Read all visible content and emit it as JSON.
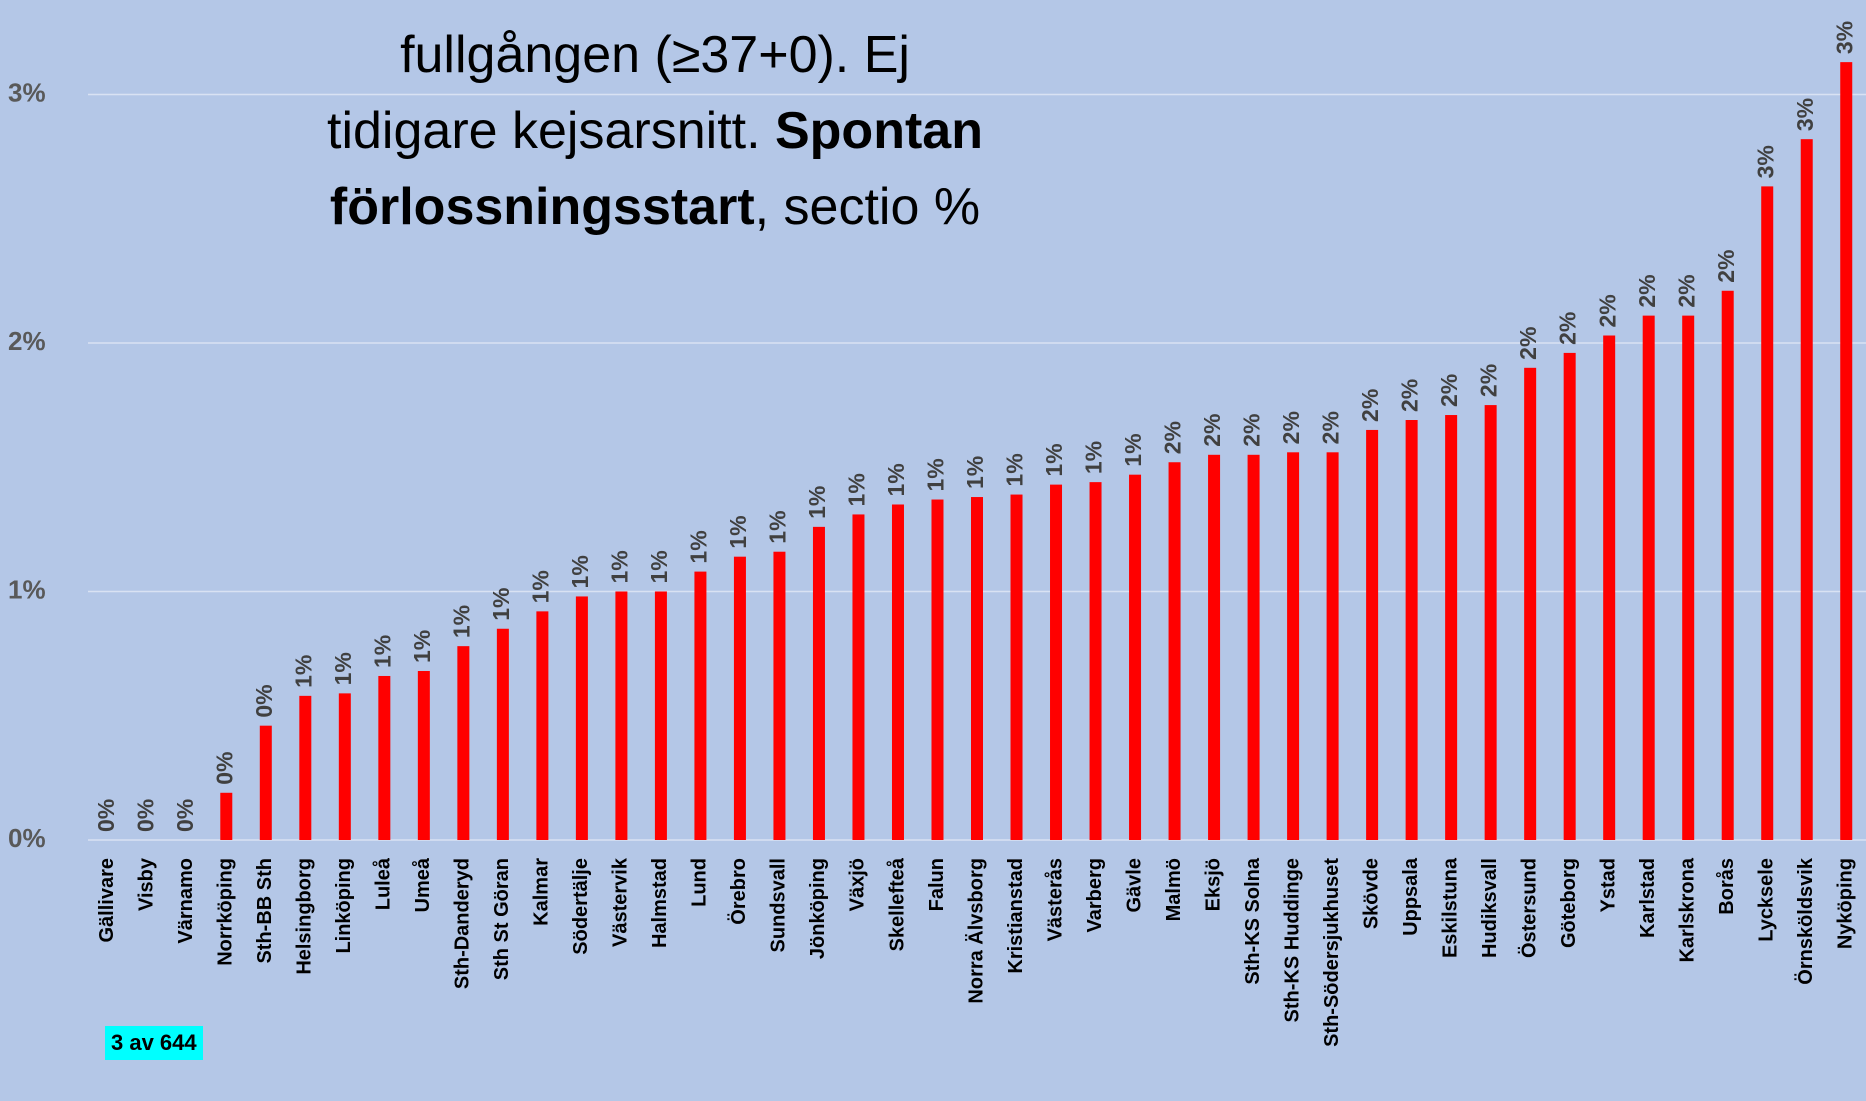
{
  "chart_data": {
    "type": "bar",
    "title_lines": [
      [
        {
          "text": "fullgången (≥37+0). Ej",
          "bold": false
        }
      ],
      [
        {
          "text": "tidigare kejsarsnitt. ",
          "bold": false
        },
        {
          "text": "Spontan",
          "bold": true
        }
      ],
      [
        {
          "text": "förlossningsstart",
          "bold": true
        },
        {
          "text": ", sectio %",
          "bold": false
        }
      ]
    ],
    "badge": "3 av 644",
    "categories": [
      "Gällivare",
      "Visby",
      "Värnamo",
      "Norrköping",
      "Sth-BB Sth",
      "Helsingborg",
      "Linköping",
      "Luleå",
      "Umeå",
      "Sth-Danderyd",
      "Sth St Göran",
      "Kalmar",
      "Södertälje",
      "Västervik",
      "Halmstad",
      "Lund",
      "Örebro",
      "Sundsvall",
      "Jönköping",
      "Växjö",
      "Skellefteå",
      "Falun",
      "Norra Älvsborg",
      "Kristianstad",
      "Västerås",
      "Varberg",
      "Gävle",
      "Malmö",
      "Eksjö",
      "Sth-KS Solna",
      "Sth-KS Huddinge",
      "Sth-Södersjukhuset",
      "Skövde",
      "Uppsala",
      "Eskilstuna",
      "Hudiksvall",
      "Östersund",
      "Göteborg",
      "Ystad",
      "Karlstad",
      "Karlskrona",
      "Borås",
      "Lycksele",
      "Örnsköldsvik",
      "Nyköping"
    ],
    "values": [
      0,
      0,
      0,
      0.19,
      0.46,
      0.58,
      0.59,
      0.66,
      0.68,
      0.78,
      0.85,
      0.92,
      0.98,
      1.0,
      1.0,
      1.08,
      1.14,
      1.16,
      1.26,
      1.31,
      1.35,
      1.37,
      1.38,
      1.39,
      1.43,
      1.44,
      1.47,
      1.52,
      1.55,
      1.55,
      1.56,
      1.56,
      1.65,
      1.69,
      1.71,
      1.75,
      1.9,
      1.96,
      2.03,
      2.11,
      2.11,
      2.21,
      2.63,
      2.82,
      3.13
    ],
    "value_labels": [
      "0%",
      "0%",
      "0%",
      "0%",
      "0%",
      "1%",
      "1%",
      "1%",
      "1%",
      "1%",
      "1%",
      "1%",
      "1%",
      "1%",
      "1%",
      "1%",
      "1%",
      "1%",
      "1%",
      "1%",
      "1%",
      "1%",
      "1%",
      "1%",
      "1%",
      "1%",
      "1%",
      "2%",
      "2%",
      "2%",
      "2%",
      "2%",
      "2%",
      "2%",
      "2%",
      "2%",
      "2%",
      "2%",
      "2%",
      "2%",
      "2%",
      "2%",
      "3%",
      "3%",
      "3%"
    ],
    "color": "#ff0000",
    "ylim": [
      0,
      3.38
    ],
    "yticks": [
      {
        "value": 0,
        "label": "0%"
      },
      {
        "value": 1,
        "label": "1%"
      },
      {
        "value": 2,
        "label": "2%"
      },
      {
        "value": 3,
        "label": "3%"
      }
    ],
    "grid": true
  }
}
